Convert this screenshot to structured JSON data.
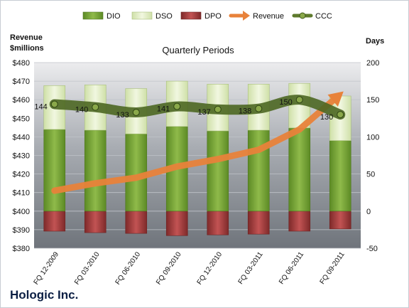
{
  "company": "Hologic Inc.",
  "chart_data": {
    "type": "bar",
    "title": "Quarterly Periods",
    "ylabel_left": [
      "Revenue",
      "$millions"
    ],
    "ylabel_right": "Days",
    "categories": [
      "FQ 12-2009",
      "FQ 03-2010",
      "FQ 06-2010",
      "FQ 09-2010",
      "FQ 12-2010",
      "FQ 03-2011",
      "FQ 06-2011",
      "FQ 09-2011"
    ],
    "left_axis": {
      "min": 380,
      "max": 480,
      "step": 10,
      "format": "$"
    },
    "right_axis": {
      "min": -50,
      "max": 200,
      "step": 50
    },
    "legend_position": "top",
    "grid": true,
    "series": [
      {
        "name": "DIO",
        "axis": "right",
        "kind": "stacked-bar",
        "color": "#7da63c",
        "values": [
          110,
          109,
          104,
          114,
          108,
          109,
          112,
          95
        ]
      },
      {
        "name": "DSO",
        "axis": "right",
        "kind": "stacked-bar",
        "color": "#dce9bf",
        "values": [
          59,
          61,
          61,
          61,
          63,
          62,
          60,
          60
        ]
      },
      {
        "name": "DPO",
        "axis": "right",
        "kind": "bar-negative",
        "color": "#9e3a3a",
        "values": [
          -27,
          -29,
          -30,
          -33,
          -32,
          -31,
          -27,
          -24
        ]
      },
      {
        "name": "Revenue",
        "axis": "left",
        "kind": "line-arrow",
        "color": "#e8823a",
        "values": [
          411,
          415,
          418,
          424,
          428,
          433,
          444,
          463
        ]
      },
      {
        "name": "CCC",
        "axis": "right",
        "kind": "line-markers",
        "color": "#5e7a2c",
        "values": [
          144,
          140,
          133,
          141,
          137,
          138,
          150,
          130
        ]
      }
    ]
  }
}
